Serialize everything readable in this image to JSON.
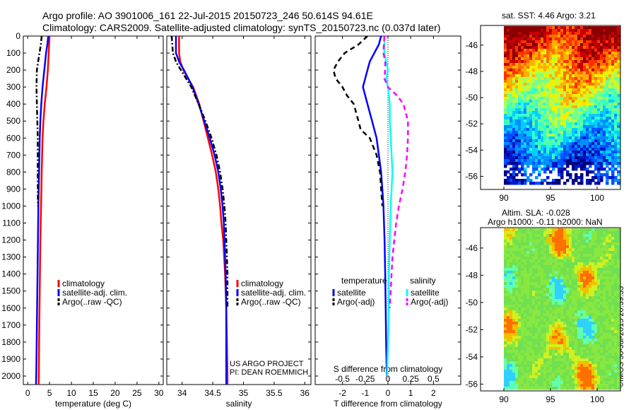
{
  "titles": {
    "line1": "Argo profile: AO 3901006_161 22-Jul-2015 20150723_246 50.614S 94.61E",
    "line2": "Climatology: CARS2009. Satellite-adjusted climatology: synTS_20150723.nc (0.037d later)"
  },
  "map_info": {
    "sst": "sat. SST: 4.46 Argo: 3.21",
    "sla": "Altim. SLA: -0.028",
    "h": "Argo h1000: -0.11 h2000: NaN"
  },
  "stamp": "©IMOS 30-Jul-2015 20:39:33",
  "project": {
    "line1": "US ARGO PROJECT",
    "line2": "PI: DEAN ROEMMICH"
  },
  "depth_ticks": [
    0,
    100,
    200,
    300,
    400,
    500,
    600,
    700,
    800,
    900,
    1000,
    1100,
    1200,
    1300,
    1400,
    1500,
    1600,
    1700,
    1800,
    1900,
    2000
  ],
  "colors": {
    "climatology": "#ff0000",
    "satellite": "#0000ff",
    "argo": "#000000",
    "sal_satellite": "#00ffff",
    "sal_argo": "#ff00ff"
  },
  "chart_data": [
    {
      "type": "line",
      "xlabel": "temperature (deg C)",
      "xlim": [
        -1,
        31
      ],
      "ylim": [
        2050,
        0
      ],
      "xticks": [
        0,
        5,
        10,
        15,
        20,
        25,
        30
      ],
      "legend": [
        "climatology",
        "satellite-adj. clim.",
        "Argo(..raw -QC)"
      ],
      "legend_placement": "lower-center",
      "series": [
        {
          "name": "climatology",
          "style": "solid",
          "depth": [
            0,
            50,
            100,
            200,
            300,
            400,
            500,
            600,
            800,
            1000,
            1200,
            1400,
            1600,
            1800,
            2000,
            2050
          ],
          "values": [
            5.0,
            4.9,
            4.8,
            4.6,
            4.3,
            3.9,
            3.6,
            3.4,
            3.2,
            3.05,
            2.9,
            2.8,
            2.7,
            2.6,
            2.55,
            2.5
          ]
        },
        {
          "name": "satellite-adj. clim.",
          "style": "solid",
          "depth": [
            0,
            50,
            100,
            200,
            300,
            400,
            500,
            600,
            800,
            1000,
            1200,
            1400,
            1600,
            1800,
            2000,
            2050
          ],
          "values": [
            4.7,
            4.5,
            4.2,
            3.8,
            3.4,
            3.1,
            2.9,
            2.75,
            2.6,
            2.45,
            2.35,
            2.25,
            2.15,
            2.05,
            1.95,
            1.9
          ]
        },
        {
          "name": "Argo(..raw -QC)",
          "style": "dashdot",
          "depth": [
            0,
            50,
            100,
            150,
            200,
            300,
            400,
            500,
            600,
            800,
            1000
          ],
          "values": [
            3.2,
            3.0,
            2.7,
            2.4,
            2.1,
            2.0,
            2.1,
            2.2,
            2.3,
            2.3,
            2.35
          ]
        }
      ]
    },
    {
      "type": "line",
      "xlabel": "salinity",
      "xlim": [
        33.75,
        36.1
      ],
      "ylim": [
        2050,
        0
      ],
      "xticks": [
        34,
        34.5,
        35,
        35.5,
        36
      ],
      "legend": [
        "climatology",
        "satellite-adj. clim.",
        "Argo(..raw -QC)"
      ],
      "legend_placement": "lower-center",
      "series": [
        {
          "name": "climatology",
          "style": "solid",
          "depth": [
            0,
            100,
            150,
            200,
            300,
            400,
            500,
            600,
            700,
            800,
            900,
            1000,
            1100,
            1200,
            1400,
            1600,
            1800,
            2000,
            2050
          ],
          "values": [
            33.95,
            33.95,
            33.97,
            34.02,
            34.18,
            34.28,
            34.35,
            34.42,
            34.49,
            34.55,
            34.59,
            34.62,
            34.64,
            34.67,
            34.7,
            34.72,
            34.73,
            34.74,
            34.74
          ]
        },
        {
          "name": "satellite-adj. clim.",
          "style": "solid",
          "depth": [
            0,
            100,
            150,
            200,
            300,
            400,
            500,
            600,
            700,
            800,
            900,
            1000,
            1100,
            1200,
            1400,
            1600,
            1800,
            2000,
            2050
          ],
          "values": [
            33.9,
            33.9,
            33.95,
            34.03,
            34.17,
            34.27,
            34.36,
            34.45,
            34.53,
            34.59,
            34.63,
            34.66,
            34.68,
            34.69,
            34.71,
            34.72,
            34.72,
            34.72,
            34.72
          ]
        },
        {
          "name": "Argo(..raw -QC)",
          "style": "dashdot",
          "depth": [
            0,
            100,
            150,
            200,
            300,
            400,
            500,
            600,
            700,
            800,
            900,
            1000,
            1100,
            1200,
            1300,
            1400,
            1600
          ],
          "values": [
            33.83,
            33.85,
            33.9,
            33.98,
            34.15,
            34.27,
            34.38,
            34.48,
            34.56,
            34.62,
            34.66,
            34.69,
            34.71,
            34.72,
            34.73,
            34.74,
            34.74
          ]
        }
      ]
    },
    {
      "type": "line",
      "xlabel": "T difference from climatology",
      "xlabel_top": "S difference from climatology",
      "xlim": [
        -3.2,
        3.2
      ],
      "xlim_salinity": [
        -0.8,
        0.8
      ],
      "ylim": [
        2050,
        0
      ],
      "xticks": [
        -2,
        -1,
        0,
        1,
        2
      ],
      "xticks_top": [
        -0.5,
        -0.25,
        0,
        0.25,
        0.5
      ],
      "legend_groups": [
        "temperature",
        "salinity"
      ],
      "legend": [
        "satellite",
        "Argo(-adj)",
        "satellite",
        "Argo(-adj)"
      ],
      "legend_placement": "lower-center",
      "series": [
        {
          "name": "temperature satellite",
          "style": "solid",
          "color": "satellite",
          "depth": [
            0,
            50,
            100,
            150,
            200,
            250,
            300,
            400,
            500,
            600,
            700,
            800,
            900,
            1000,
            1200,
            1400,
            1600,
            1800,
            2000
          ],
          "values": [
            -0.3,
            -0.4,
            -0.6,
            -0.8,
            -0.9,
            -1.0,
            -1.1,
            -0.9,
            -0.7,
            -0.5,
            -0.4,
            -0.3,
            -0.25,
            -0.2,
            -0.15,
            -0.12,
            -0.1,
            -0.08,
            -0.05
          ]
        },
        {
          "name": "temperature Argo(-adj)",
          "style": "dashed",
          "color": "argo",
          "depth": [
            0,
            50,
            100,
            150,
            200,
            250,
            300,
            350,
            400,
            450,
            500,
            550,
            600,
            700,
            800,
            900,
            1000
          ],
          "values": [
            -0.9,
            -1.3,
            -1.9,
            -2.2,
            -2.4,
            -2.3,
            -2.0,
            -1.8,
            -1.5,
            -1.4,
            -1.3,
            -1.2,
            -0.8,
            -0.5,
            -0.35,
            -0.3,
            -0.25
          ]
        },
        {
          "name": "salinity satellite",
          "style": "solid",
          "color": "sal_satellite",
          "depth": [
            0,
            100,
            200,
            250,
            300,
            400,
            500,
            600,
            700,
            800,
            900,
            1000,
            1200,
            1400,
            1600,
            1800,
            2000
          ],
          "values": [
            -0.04,
            -0.04,
            0.0,
            -0.02,
            0.0,
            0.02,
            0.02,
            0.03,
            0.04,
            0.05,
            0.04,
            0.03,
            0.02,
            0.01,
            0.01,
            0.0,
            -0.01
          ]
        },
        {
          "name": "salinity Argo(-adj)",
          "style": "dashed",
          "color": "sal_argo",
          "depth": [
            0,
            100,
            150,
            200,
            250,
            300,
            350,
            400,
            500,
            600,
            700,
            800,
            900,
            1000,
            1100,
            1200,
            1300,
            1400,
            1500,
            1600
          ],
          "values": [
            -0.04,
            -0.05,
            -0.03,
            -0.03,
            -0.04,
            0.0,
            0.1,
            0.17,
            0.22,
            0.22,
            0.21,
            0.19,
            0.16,
            0.12,
            0.09,
            0.07,
            0.05,
            0.04,
            0.03,
            0.02
          ]
        }
      ]
    },
    {
      "type": "heatmap",
      "title": "sat. SST: 4.46 Argo: 3.21",
      "xlim": [
        87.5,
        102.5
      ],
      "ylim": [
        -57,
        -44.5
      ],
      "xticks": [
        90,
        95,
        100
      ],
      "yticks": [
        -46,
        -48,
        -50,
        -52,
        -54,
        -56
      ],
      "gradient": "north-warm-south-cold"
    },
    {
      "type": "heatmap",
      "title": "Altim. SLA: -0.028",
      "xlim": [
        87.5,
        102.5
      ],
      "ylim": [
        -56.5,
        -44.5
      ],
      "xticks": [
        90,
        95,
        100
      ],
      "yticks": [
        -46,
        -48,
        -50,
        -52,
        -54,
        -56
      ],
      "gradient": "mostly-green-with-small-blobs"
    }
  ]
}
